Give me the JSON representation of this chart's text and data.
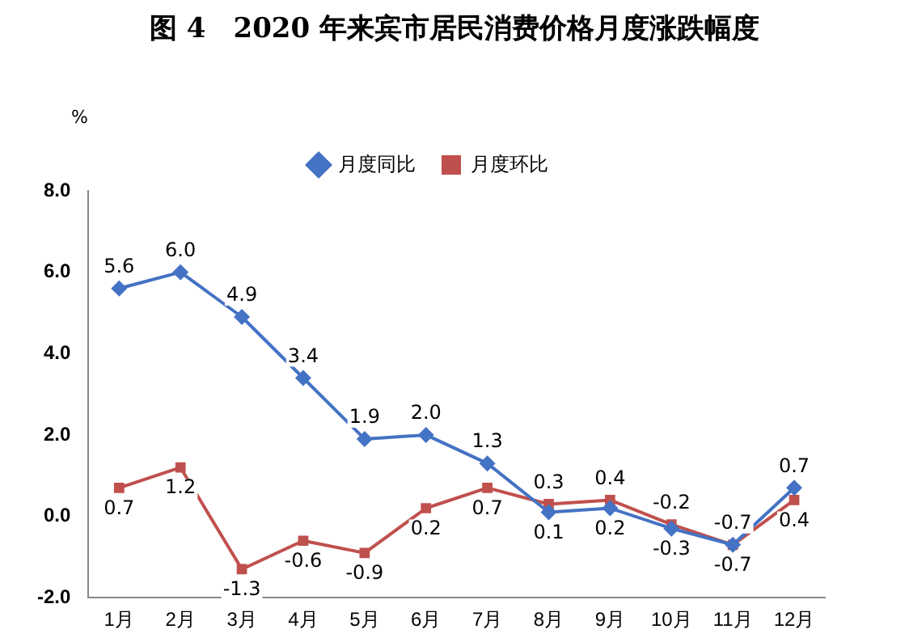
{
  "chart_data": {
    "type": "line",
    "title": "图 4　2020 年来宾市居民消费价格月度涨跌幅度",
    "ylabel": "%",
    "categories": [
      "1月",
      "2月",
      "3月",
      "4月",
      "5月",
      "6月",
      "7月",
      "8月",
      "9月",
      "10月",
      "11月",
      "12月"
    ],
    "series": [
      {
        "name": "月度同比",
        "color": "#4472c4",
        "marker": "diamond",
        "values": [
          5.6,
          6.0,
          4.9,
          3.4,
          1.9,
          2.0,
          1.3,
          0.1,
          0.2,
          -0.3,
          -0.7,
          0.7
        ],
        "value_labels": [
          "5.6",
          "6.0",
          "4.9",
          "3.4",
          "1.9",
          "2.0",
          "1.3",
          "0.1",
          "0.2",
          "-0.3",
          "-0.7",
          "0.7"
        ]
      },
      {
        "name": "月度环比",
        "color": "#c0504d",
        "marker": "square",
        "values": [
          0.7,
          1.2,
          -1.3,
          -0.6,
          -0.9,
          0.2,
          0.7,
          0.3,
          0.4,
          -0.2,
          -0.7,
          0.4
        ],
        "value_labels": [
          "0.7",
          "1.2",
          "-1.3",
          "-0.6",
          "-0.9",
          "0.2",
          "0.7",
          "0.3",
          "0.4",
          "-0.2",
          "-0.7",
          "0.4"
        ]
      }
    ],
    "ylim": [
      -2,
      8
    ],
    "yticks": [
      {
        "value": -2,
        "label": "-2.0"
      },
      {
        "value": 0,
        "label": "0.0"
      },
      {
        "value": 2,
        "label": "2.0"
      },
      {
        "value": 4,
        "label": "4.0"
      },
      {
        "value": 6,
        "label": "6.0"
      },
      {
        "value": 8,
        "label": "8.0"
      }
    ],
    "grid": false,
    "legend": "top"
  }
}
